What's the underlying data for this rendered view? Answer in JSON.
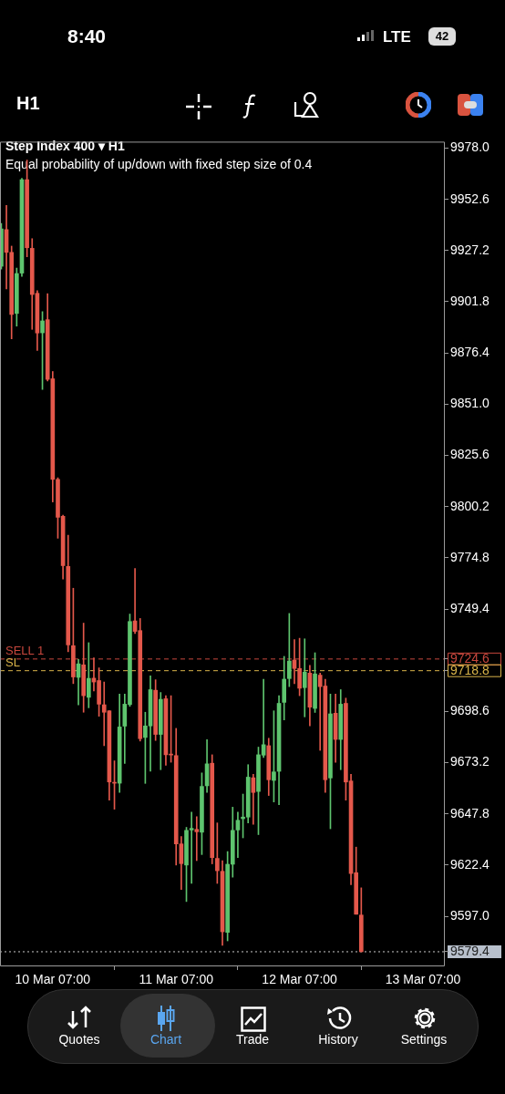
{
  "chart_data": {
    "type": "candlestick",
    "title": "Step Index 400 ▾ H1",
    "subtitle": "Equal probability of up/down with fixed step size of 0.4",
    "annotations": [
      "8:40",
      "LTE",
      "42",
      "H1",
      "Quotes",
      "Chart",
      "Trade",
      "History",
      "Settings"
    ],
    "x": [
      "--03-09T21:00",
      "--03-09T22:00",
      "--03-09T23:00",
      "--03-10T00:00",
      "--03-10T01:00",
      "--03-10T02:00",
      "--03-10T03:00",
      "--03-10T04:00",
      "--03-10T05:00",
      "--03-10T06:00",
      "--03-10T07:00",
      "--03-10T08:00",
      "--03-10T09:00",
      "--03-10T10:00",
      "--03-10T11:00",
      "--03-10T12:00",
      "--03-10T13:00",
      "--03-10T14:00",
      "--03-10T15:00",
      "--03-10T16:00",
      "--03-10T17:00",
      "--03-10T18:00",
      "--03-10T19:00",
      "--03-10T20:00",
      "--03-10T21:00",
      "--03-10T22:00",
      "--03-10T23:00",
      "--03-11T00:00",
      "--03-11T01:00",
      "--03-11T02:00",
      "--03-11T03:00",
      "--03-11T04:00",
      "--03-11T05:00",
      "--03-11T06:00",
      "--03-11T07:00",
      "--03-11T08:00",
      "--03-11T09:00",
      "--03-11T10:00",
      "--03-11T11:00",
      "--03-11T12:00",
      "--03-11T13:00",
      "--03-11T14:00",
      "--03-11T15:00",
      "--03-11T16:00",
      "--03-11T17:00",
      "--03-11T18:00",
      "--03-11T19:00",
      "--03-11T20:00",
      "--03-11T21:00",
      "--03-11T22:00",
      "--03-11T23:00",
      "--03-12T00:00",
      "--03-12T01:00",
      "--03-12T02:00",
      "--03-12T03:00",
      "--03-12T04:00",
      "--03-12T05:00",
      "--03-12T06:00",
      "--03-12T07:00",
      "--03-12T08:00",
      "--03-12T09:00",
      "--03-12T10:00",
      "--03-12T11:00",
      "--03-12T12:00",
      "--03-12T13:00",
      "--03-12T14:00",
      "--03-12T15:00",
      "--03-12T16:00",
      "--03-12T17:00",
      "--03-12T18:00",
      "--03-12T19:00"
    ],
    "ohlc": [
      [
        9919.4,
        9940.6,
        9918.0,
        9937.9
      ],
      [
        9937.6,
        9949.6,
        9908.2,
        9926.3
      ],
      [
        9926.3,
        9929.4,
        9883.4,
        9895.5
      ],
      [
        9896.0,
        9918.5,
        9889.7,
        9915.8
      ],
      [
        9916.0,
        9963.0,
        9914.4,
        9962.4
      ],
      [
        9962.4,
        9972.1,
        9924.1,
        9928.6
      ],
      [
        9928.3,
        9933.1,
        9888.1,
        9905.4
      ],
      [
        9906.0,
        9907.3,
        9877.6,
        9886.3
      ],
      [
        9886.4,
        9896.9,
        9858.3,
        9892.3
      ],
      [
        9892.9,
        9905.8,
        9862.5,
        9863.3
      ],
      [
        9863.6,
        9867.2,
        9802.5,
        9813.7
      ],
      [
        9813.7,
        9814.5,
        9784.5,
        9794.9
      ],
      [
        9795.4,
        9796.0,
        9764.2,
        9770.9
      ],
      [
        9770.5,
        9786.0,
        9728.2,
        9731.6
      ],
      [
        9731.2,
        9759.7,
        9712.4,
        9715.7
      ],
      [
        9715.5,
        9724.4,
        9701.9,
        9722.2
      ],
      [
        9721.7,
        9742.4,
        9698.2,
        9706.4
      ],
      [
        9705.6,
        9732.7,
        9700.4,
        9715.0
      ],
      [
        9715.1,
        9725.2,
        9708.7,
        9713.2
      ],
      [
        9713.9,
        9720.2,
        9696.2,
        9702.2
      ],
      [
        9701.9,
        9713.2,
        9681.6,
        9698.2
      ],
      [
        9698.9,
        9699.0,
        9654.6,
        9663.6
      ],
      [
        9663.4,
        9674.1,
        9650.1,
        9663.0
      ],
      [
        9663.0,
        9707.2,
        9658.4,
        9690.9
      ],
      [
        9691.3,
        9707.2,
        9672.8,
        9702.2
      ],
      [
        9702.0,
        9746.9,
        9701.1,
        9743.2
      ],
      [
        9743.5,
        9769.5,
        9737.2,
        9738.3
      ],
      [
        9738.7,
        9744.7,
        9683.9,
        9685.1
      ],
      [
        9685.7,
        9698.2,
        9662.9,
        9691.4
      ],
      [
        9691.4,
        9716.2,
        9668.9,
        9709.4
      ],
      [
        9709.1,
        9714.3,
        9684.2,
        9687.2
      ],
      [
        9687.2,
        9708.0,
        9669.7,
        9704.6
      ],
      [
        9704.9,
        9706.4,
        9671.9,
        9677.1
      ],
      [
        9677.4,
        9706.4,
        9673.4,
        9677.0
      ],
      [
        9676.7,
        9690.2,
        9622.4,
        9632.9
      ],
      [
        9632.9,
        9636.6,
        9610.3,
        9623.1
      ],
      [
        9622.4,
        9641.1,
        9604.3,
        9639.6
      ],
      [
        9639.8,
        9648.6,
        9613.3,
        9640.6
      ],
      [
        9640.1,
        9646.4,
        9624.6,
        9638.9
      ],
      [
        9638.7,
        9668.1,
        9627.6,
        9661.4
      ],
      [
        9661.7,
        9684.6,
        9658.4,
        9672.6
      ],
      [
        9672.9,
        9677.1,
        9623.0,
        9626.1
      ],
      [
        9625.7,
        9643.3,
        9613.3,
        9619.6
      ],
      [
        9619.3,
        9624.6,
        9582.6,
        9589.3
      ],
      [
        9589.0,
        9629.1,
        9584.8,
        9622.8
      ],
      [
        9622.8,
        9651.1,
        9616.4,
        9639.6
      ],
      [
        9639.8,
        9648.6,
        9626.1,
        9644.6
      ],
      [
        9645.4,
        9657.6,
        9635.9,
        9646.2
      ],
      [
        9646.2,
        9672.2,
        9643.3,
        9666.0
      ],
      [
        9665.7,
        9667.4,
        9642.6,
        9658.4
      ],
      [
        9658.9,
        9680.9,
        9637.5,
        9677.1
      ],
      [
        9676.9,
        9714.6,
        9675.7,
        9682.1
      ],
      [
        9681.6,
        9685.3,
        9656.9,
        9664.7
      ],
      [
        9664.4,
        9698.9,
        9653.7,
        9668.6
      ],
      [
        9668.9,
        9706.4,
        9652.3,
        9702.6
      ],
      [
        9703.1,
        9725.9,
        9694.4,
        9714.6
      ],
      [
        9714.9,
        9747.2,
        9710.9,
        9723.6
      ],
      [
        9724.1,
        9734.2,
        9712.4,
        9719.9
      ],
      [
        9719.9,
        9734.9,
        9706.4,
        9710.1
      ],
      [
        9710.4,
        9734.6,
        9695.9,
        9718.1
      ],
      [
        9717.6,
        9721.4,
        9691.4,
        9700.7
      ],
      [
        9700.1,
        9727.7,
        9698.1,
        9717.2
      ],
      [
        9716.6,
        9717.6,
        9679.3,
        9710.9
      ],
      [
        9711.2,
        9714.6,
        9658.4,
        9664.7
      ],
      [
        9665.6,
        9707.2,
        9640.4,
        9697.4
      ],
      [
        9697.7,
        9707.2,
        9673.4,
        9684.7
      ],
      [
        9684.7,
        9709.4,
        9669.7,
        9702.2
      ],
      [
        9702.6,
        9705.2,
        9654.6,
        9663.6
      ],
      [
        9664.1,
        9667.4,
        9612.6,
        9618.2
      ],
      [
        9618.6,
        9631.3,
        9598.0,
        9598.0
      ],
      [
        9597.6,
        9611.1,
        9579.4,
        9579.4
      ]
    ],
    "colors": [
      "#5ec46e",
      "#e4584b",
      "#e4584b",
      "#5ec46e",
      "#5ec46e",
      "#e4584b",
      "#e4584b",
      "#e4584b",
      "#5ec46e",
      "#e4584b",
      "#e4584b",
      "#e4584b",
      "#e4584b",
      "#e4584b",
      "#e4584b",
      "#5ec46e",
      "#e4584b",
      "#5ec46e",
      "#e4584b",
      "#e4584b",
      "#e4584b",
      "#e4584b",
      "#e4584b",
      "#5ec46e",
      "#5ec46e",
      "#5ec46e",
      "#e4584b",
      "#e4584b",
      "#5ec46e",
      "#5ec46e",
      "#e4584b",
      "#5ec46e",
      "#e4584b",
      "#e4584b",
      "#e4584b",
      "#e4584b",
      "#5ec46e",
      "#5ec46e",
      "#e4584b",
      "#5ec46e",
      "#5ec46e",
      "#e4584b",
      "#e4584b",
      "#e4584b",
      "#5ec46e",
      "#5ec46e",
      "#5ec46e",
      "#5ec46e",
      "#5ec46e",
      "#e4584b",
      "#5ec46e",
      "#5ec46e",
      "#e4584b",
      "#5ec46e",
      "#5ec46e",
      "#5ec46e",
      "#5ec46e",
      "#e4584b",
      "#e4584b",
      "#5ec46e",
      "#e4584b",
      "#5ec46e",
      "#e4584b",
      "#e4584b",
      "#5ec46e",
      "#e4584b",
      "#5ec46e",
      "#e4584b",
      "#e4584b",
      "#e4584b",
      "#e4584b"
    ],
    "xlim": [
      "--03-09T20:45",
      "--03-13T11:15"
    ],
    "xticks": [
      {
        "value": "--03-10T07:00",
        "label": "10 Mar 07:00"
      },
      {
        "value": "--03-11T07:00",
        "label": "11 Mar 07:00"
      },
      {
        "value": "--03-12T07:00",
        "label": "12 Mar 07:00"
      },
      {
        "value": "--03-13T07:00",
        "label": "13 Mar 07:00"
      }
    ],
    "ylim": [
      9572.6,
      9981.2
    ],
    "yticks": [
      {
        "value": 9978,
        "label": "9978.0"
      },
      {
        "value": 9952.6,
        "label": "9952.6"
      },
      {
        "value": 9927.2,
        "label": "9927.2"
      },
      {
        "value": 9901.8,
        "label": "9901.8"
      },
      {
        "value": 9876.4,
        "label": "9876.4"
      },
      {
        "value": 9851,
        "label": "9851.0"
      },
      {
        "value": 9825.6,
        "label": "9825.6"
      },
      {
        "value": 9800.2,
        "label": "9800.2"
      },
      {
        "value": 9774.8,
        "label": "9774.8"
      },
      {
        "value": 9749.4,
        "label": "9749.4"
      },
      {
        "value": 9724.6,
        "label": "9724.6"
      },
      {
        "value": 9718.8,
        "label": "9718.8"
      },
      {
        "value": 9698.6,
        "label": "9698.6"
      },
      {
        "value": 9673.2,
        "label": "9673.2"
      },
      {
        "value": 9647.8,
        "label": "9647.8"
      },
      {
        "value": 9622.4,
        "label": "9622.4"
      },
      {
        "value": 9597,
        "label": "9597.0"
      },
      {
        "value": 9579.4,
        "label": "9579.4"
      }
    ],
    "ref_lines": [
      {
        "axis": "y",
        "value": 9724.6,
        "label": "SELL 1",
        "color": "#c8473d",
        "line_style": "dashed"
      },
      {
        "axis": "y",
        "value": 9718.8,
        "label": "SL",
        "color": "#d9b44a",
        "line_style": "dashed"
      },
      {
        "axis": "y",
        "value": 9579.4,
        "color": "#c8c8c8",
        "line_style": "dotted"
      }
    ],
    "grid": false,
    "legend": false
  }
}
